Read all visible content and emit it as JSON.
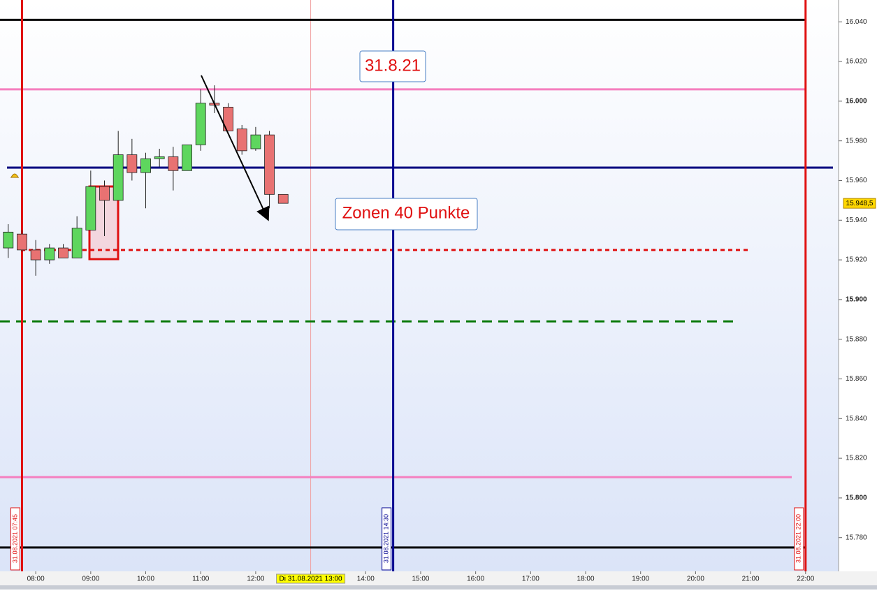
{
  "chart_data": {
    "type": "candlestick",
    "x": [
      "07:30",
      "07:45",
      "08:00",
      "08:15",
      "08:30",
      "08:45",
      "09:00",
      "09:15",
      "09:30",
      "09:45",
      "10:00",
      "10:15",
      "10:30",
      "10:45",
      "11:00",
      "11:15",
      "11:30",
      "11:45",
      "12:00",
      "12:15",
      "12:30"
    ],
    "open": [
      15926,
      15933,
      15925,
      15920,
      15926,
      15921,
      15935,
      15957,
      15950,
      15973,
      15964,
      15971,
      15972,
      15965,
      15978,
      15999,
      15997,
      15986,
      15976,
      15983,
      15953
    ],
    "high": [
      15938,
      15935,
      15930,
      15928,
      15928,
      15942,
      15965,
      15960,
      15985,
      15981,
      15974,
      15976,
      15977,
      15978,
      16006,
      16008,
      15999,
      15988,
      15987,
      15985,
      15953
    ],
    "low": [
      15921,
      15924,
      15912,
      15918,
      15921,
      15921,
      15935,
      15932,
      15950,
      15960,
      15946,
      15967,
      15955,
      15965,
      15975,
      15994,
      15985,
      15973,
      15975,
      15946,
      15948.5
    ],
    "close": [
      15934,
      15925,
      15920,
      15926,
      15921,
      15936,
      15957,
      15950,
      15973,
      15964,
      15971,
      15972,
      15965,
      15978,
      15999,
      15998,
      15985,
      15975,
      15983,
      15953,
      15948.5
    ],
    "up_color": "#5ed65e",
    "down_color": "#e87272",
    "xlim": [
      "07:21",
      "22:36"
    ],
    "xticks": [
      "08:00",
      "09:00",
      "10:00",
      "11:00",
      "12:00",
      {
        "value": "13:00",
        "label": "Di 31.08.2021 13:00"
      },
      "14:00",
      "15:00",
      "16:00",
      "17:00",
      "18:00",
      "19:00",
      "20:00",
      "21:00",
      "22:00"
    ],
    "ylim": [
      15763,
      16051
    ],
    "yticks": [
      {
        "value": 16040,
        "label": "16.040"
      },
      {
        "value": 16020,
        "label": "16.020"
      },
      {
        "value": 16000,
        "label": "16.000"
      },
      {
        "value": 15980,
        "label": "15.980"
      },
      {
        "value": 15960,
        "label": "15.960"
      },
      {
        "value": 15940,
        "label": "15.940"
      },
      {
        "value": 15920,
        "label": "15.920"
      },
      {
        "value": 15900,
        "label": "15.900"
      },
      {
        "value": 15880,
        "label": "15.880"
      },
      {
        "value": 15860,
        "label": "15.860"
      },
      {
        "value": 15840,
        "label": "15.840"
      },
      {
        "value": 15820,
        "label": "15.820"
      },
      {
        "value": 15800,
        "label": "15.800"
      },
      {
        "value": 15780,
        "label": "15.780"
      }
    ],
    "last_price": {
      "value": 15948.5,
      "label": "15.948,5"
    },
    "hlines": [
      {
        "value": 16041,
        "color": "#000000",
        "style": "solid"
      },
      {
        "value": 16006,
        "color": "#f57fbf",
        "style": "solid"
      },
      {
        "value": 15966.5,
        "color": "#000080",
        "style": "solid"
      },
      {
        "value": 15925,
        "color": "#e01010",
        "style": "dotted"
      },
      {
        "value": 15889,
        "color": "#0a7a0a",
        "style": "dashed"
      },
      {
        "value": 15810.5,
        "color": "#f57fbf",
        "style": "solid"
      },
      {
        "value": 15775,
        "color": "#000000",
        "style": "solid"
      }
    ],
    "vlines": [
      {
        "x": "07:45",
        "color": "#e01010",
        "label": "31.08.2021 07:45"
      },
      {
        "x": "14:30",
        "color": "#000090",
        "label": "31.08.2021 14:30"
      },
      {
        "x": "22:00",
        "color": "#e01010",
        "label": "31.08.2021 22:00"
      }
    ],
    "now_line": "13:00",
    "annotations": [
      "31.8.21",
      "Zonen 40 Punkte"
    ]
  }
}
